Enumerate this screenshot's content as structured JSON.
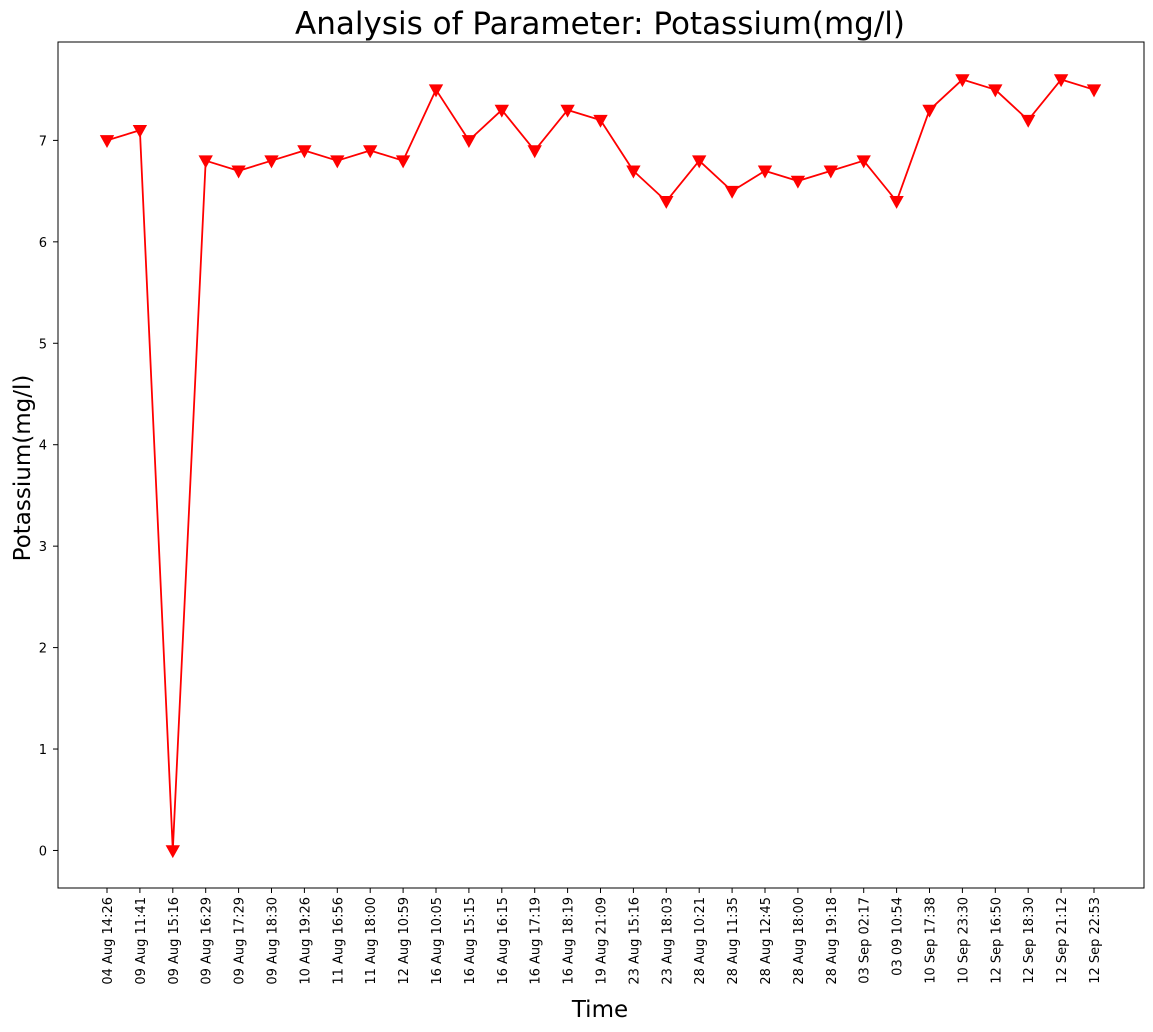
{
  "chart_data": {
    "type": "line",
    "title": "Analysis of Parameter: Potassium(mg/l)",
    "xlabel": "Time",
    "ylabel": "Potassium(mg/l)",
    "ylim": [
      -0.37,
      7.97
    ],
    "yticks": [
      0,
      1,
      2,
      3,
      4,
      5,
      6,
      7
    ],
    "grid": false,
    "marker": "triangle-down",
    "color": "#ff0000",
    "categories": [
      "04 Aug 14:26",
      "09 Aug 11:41",
      "09 Aug 15:16",
      "09 Aug 16:29",
      "09 Aug 17:29",
      "09 Aug 18:30",
      "10 Aug 19:26",
      "11 Aug 16:56",
      "11 Aug 18:00",
      "12 Aug 10:59",
      "16 Aug 10:05",
      "16 Aug 15:15",
      "16 Aug 16:15",
      "16 Aug 17:19",
      "16 Aug 18:19",
      "19 Aug 21:09",
      "23 Aug 15:16",
      "23 Aug 18:03",
      "28 Aug 10:21",
      "28 Aug 11:35",
      "28 Aug 12:45",
      "28 Aug 18:00",
      "28 Aug 19:18",
      "03 Sep 02:17",
      "03 09 10:54",
      "10 Sep 17:38",
      "10 Sep 23:30",
      "12 Sep 16:50",
      "12 Sep 18:30",
      "12 Sep 21:12",
      "12 Sep 22:53"
    ],
    "series": [
      {
        "values": [
          7.0,
          7.1,
          0.0,
          6.8,
          6.7,
          6.8,
          6.9,
          6.8,
          6.9,
          6.8,
          7.5,
          7.0,
          7.3,
          6.9,
          7.3,
          7.2,
          6.7,
          6.4,
          6.8,
          6.5,
          6.7,
          6.6,
          6.7,
          6.8,
          6.4,
          7.3,
          7.6,
          7.5,
          7.2,
          7.6,
          7.5
        ]
      }
    ]
  }
}
